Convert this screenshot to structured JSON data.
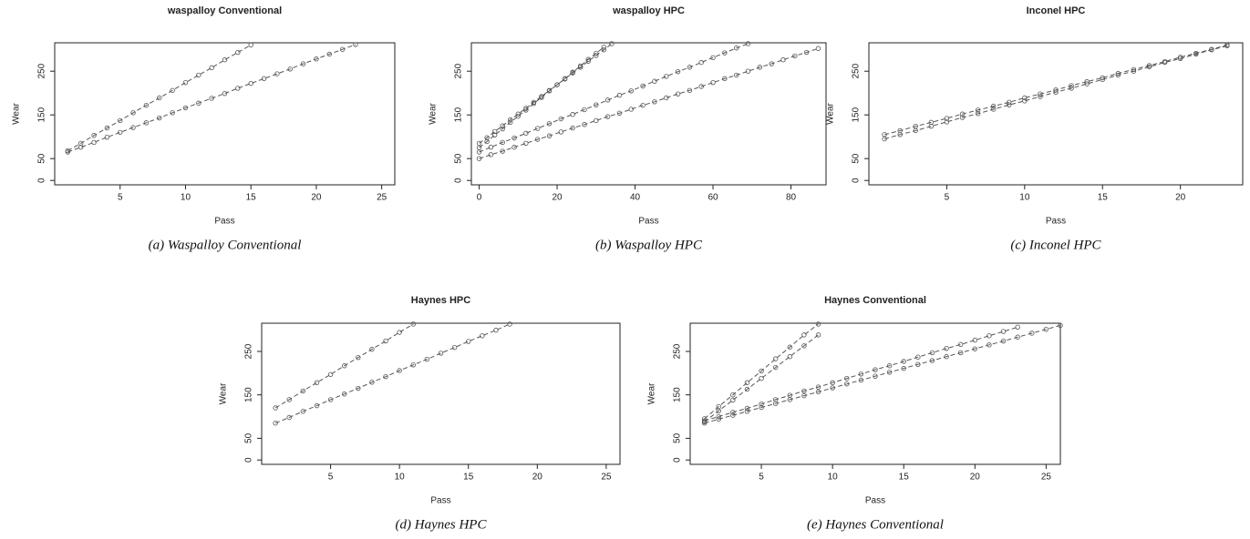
{
  "chart_data": [
    {
      "type": "scatter",
      "title": "waspalloy Conventional",
      "caption": "(a) Waspalloy Conventional",
      "x_label": "Pass",
      "y_label": "Wear",
      "color": "#555555",
      "xlim": [
        0,
        26
      ],
      "xticks": [
        5,
        10,
        15,
        20,
        25
      ],
      "ylim": [
        -10,
        315
      ],
      "yticks": [
        0,
        50,
        150,
        250
      ],
      "series": [
        {
          "x": [
            1,
            2,
            3,
            4,
            5,
            6,
            7,
            8,
            9,
            10,
            11,
            12,
            13,
            14,
            15
          ],
          "values": [
            68,
            85,
            103,
            120,
            137,
            155,
            172,
            189,
            206,
            224,
            241,
            258,
            276,
            293,
            310
          ]
        },
        {
          "x": [
            1,
            2,
            3,
            4,
            5,
            6,
            7,
            8,
            9,
            10,
            11,
            12,
            13,
            14,
            15,
            16,
            17,
            18,
            19,
            20,
            21,
            22,
            23
          ],
          "values": [
            65,
            76,
            87,
            99,
            110,
            121,
            132,
            143,
            155,
            166,
            177,
            188,
            199,
            211,
            222,
            233,
            244,
            255,
            267,
            278,
            289,
            300,
            311
          ]
        }
      ]
    },
    {
      "type": "scatter",
      "title": "waspalloy HPC",
      "caption": "(b) Waspalloy HPC",
      "x_label": "Pass",
      "y_label": "Wear",
      "color": "#555555",
      "xlim": [
        -2,
        89
      ],
      "xticks": [
        0,
        20,
        40,
        60,
        80
      ],
      "ylim": [
        -10,
        315
      ],
      "yticks": [
        0,
        50,
        150,
        250
      ],
      "series": [
        {
          "x": [
            0,
            2,
            4,
            6,
            8,
            10,
            12,
            14,
            16,
            18,
            20,
            22,
            24,
            26,
            28,
            30,
            32,
            34
          ],
          "values": [
            85,
            98,
            112,
            125,
            139,
            152,
            165,
            179,
            192,
            206,
            219,
            232,
            246,
            259,
            273,
            286,
            299,
            313
          ]
        },
        {
          "x": [
            0,
            2,
            4,
            6,
            8,
            10,
            12,
            14,
            16,
            18,
            20,
            22,
            24,
            26,
            28,
            30,
            32
          ],
          "values": [
            75,
            89,
            104,
            118,
            133,
            147,
            161,
            176,
            190,
            205,
            219,
            233,
            248,
            262,
            277,
            291,
            305
          ]
        },
        {
          "x": [
            0,
            3,
            6,
            9,
            12,
            15,
            18,
            21,
            24,
            27,
            30,
            33,
            36,
            39,
            42,
            45,
            48,
            51,
            54,
            57,
            60,
            63,
            66,
            69
          ],
          "values": [
            65,
            76,
            87,
            97,
            108,
            119,
            130,
            141,
            151,
            162,
            173,
            184,
            195,
            205,
            216,
            227,
            238,
            249,
            259,
            270,
            281,
            292,
            303,
            313
          ]
        },
        {
          "x": [
            0,
            3,
            6,
            9,
            12,
            15,
            18,
            21,
            24,
            27,
            30,
            33,
            36,
            39,
            42,
            45,
            48,
            51,
            54,
            57,
            60,
            63,
            66,
            69,
            72,
            75,
            78,
            81,
            84,
            87
          ],
          "values": [
            50,
            59,
            67,
            76,
            85,
            94,
            102,
            111,
            120,
            128,
            137,
            146,
            154,
            163,
            172,
            180,
            189,
            198,
            206,
            215,
            224,
            233,
            241,
            250,
            259,
            267,
            276,
            285,
            293,
            302
          ]
        }
      ]
    },
    {
      "type": "scatter",
      "title": "Inconel HPC",
      "caption": "(c) Inconel HPC",
      "x_label": "Pass",
      "y_label": "Wear",
      "color": "#555555",
      "xlim": [
        0,
        24
      ],
      "xticks": [
        5,
        10,
        15,
        20
      ],
      "ylim": [
        -10,
        315
      ],
      "yticks": [
        0,
        50,
        150,
        250
      ],
      "series": [
        {
          "x": [
            1,
            2,
            3,
            4,
            5,
            6,
            7,
            8,
            9,
            10,
            11,
            12,
            13,
            14,
            15,
            16,
            17,
            18,
            19,
            20,
            21,
            22,
            23
          ],
          "values": [
            105,
            114,
            124,
            133,
            142,
            152,
            161,
            170,
            179,
            189,
            198,
            207,
            217,
            226,
            235,
            245,
            254,
            263,
            272,
            282,
            291,
            300,
            310
          ]
        },
        {
          "x": [
            1,
            2,
            3,
            4,
            5,
            6,
            7,
            8,
            9,
            10,
            11,
            12,
            13,
            14,
            15,
            16,
            17,
            18,
            19,
            20,
            21,
            22,
            23
          ],
          "values": [
            95,
            105,
            114,
            124,
            134,
            144,
            153,
            163,
            173,
            182,
            192,
            202,
            211,
            221,
            231,
            241,
            250,
            260,
            270,
            279,
            289,
            299,
            308
          ]
        }
      ]
    },
    {
      "type": "scatter",
      "title": "Haynes HPC",
      "caption": "(d) Haynes HPC",
      "x_label": "Pass",
      "y_label": "Wear",
      "color": "#555555",
      "xlim": [
        0,
        26
      ],
      "xticks": [
        5,
        10,
        15,
        20,
        25
      ],
      "ylim": [
        -10,
        315
      ],
      "yticks": [
        0,
        50,
        150,
        250
      ],
      "series": [
        {
          "x": [
            1,
            2,
            3,
            4,
            5,
            6,
            7,
            8,
            9,
            10,
            11
          ],
          "values": [
            120,
            139,
            159,
            178,
            197,
            217,
            236,
            255,
            274,
            294,
            313
          ]
        },
        {
          "x": [
            1,
            2,
            3,
            4,
            5,
            6,
            7,
            8,
            9,
            10,
            11,
            12,
            13,
            14,
            15,
            16,
            17,
            18
          ],
          "values": [
            85,
            98,
            112,
            125,
            139,
            152,
            165,
            179,
            192,
            206,
            219,
            232,
            246,
            259,
            273,
            286,
            299,
            313
          ]
        }
      ]
    },
    {
      "type": "scatter",
      "title": "Haynes Conventional",
      "caption": "(e) Haynes Conventional",
      "x_label": "Pass",
      "y_label": "Wear",
      "color": "#555555",
      "xlim": [
        0,
        26
      ],
      "xticks": [
        5,
        10,
        15,
        20,
        25
      ],
      "ylim": [
        -10,
        315
      ],
      "yticks": [
        0,
        50,
        150,
        250
      ],
      "series": [
        {
          "x": [
            1,
            2,
            3,
            4,
            5,
            6,
            7,
            8,
            9
          ],
          "values": [
            95,
            123,
            150,
            178,
            205,
            233,
            260,
            288,
            313
          ]
        },
        {
          "x": [
            1,
            2,
            3,
            4,
            5,
            6,
            7,
            8,
            9
          ],
          "values": [
            88,
            113,
            138,
            163,
            188,
            213,
            238,
            263,
            288
          ]
        },
        {
          "x": [
            1,
            2,
            3,
            4,
            5,
            6,
            7,
            8,
            9,
            10,
            11,
            12,
            13,
            14,
            15,
            16,
            17,
            18,
            19,
            20,
            21,
            22,
            23
          ],
          "values": [
            90,
            100,
            110,
            119,
            129,
            139,
            149,
            159,
            168,
            178,
            188,
            198,
            208,
            217,
            227,
            237,
            247,
            257,
            266,
            276,
            286,
            296,
            306
          ]
        },
        {
          "x": [
            1,
            2,
            3,
            4,
            5,
            6,
            7,
            8,
            9,
            10,
            11,
            12,
            13,
            14,
            15,
            16,
            17,
            18,
            19,
            20,
            21,
            22,
            23,
            24,
            25,
            26
          ],
          "values": [
            85,
            94,
            103,
            112,
            121,
            130,
            139,
            148,
            157,
            166,
            175,
            184,
            193,
            202,
            211,
            220,
            229,
            238,
            247,
            256,
            265,
            274,
            283,
            292,
            301,
            310
          ]
        }
      ]
    }
  ]
}
